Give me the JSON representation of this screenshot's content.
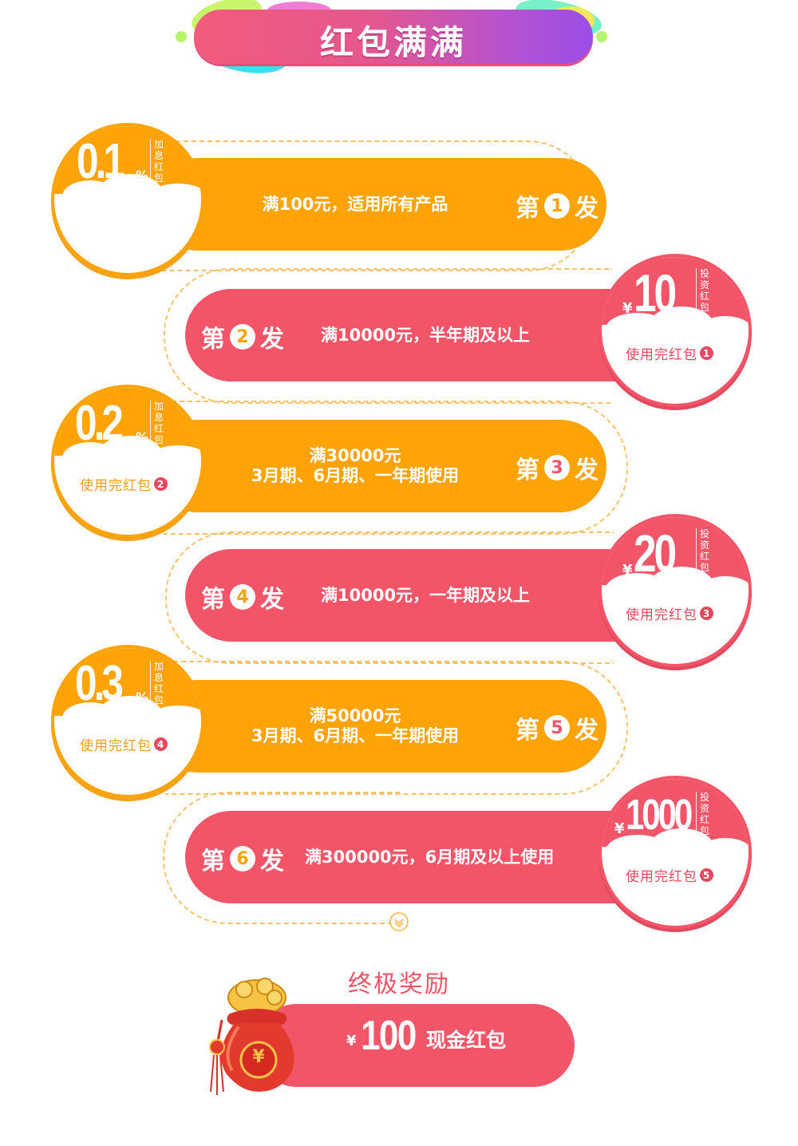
{
  "banner": {
    "title": "红包满满"
  },
  "rows": [
    {
      "ordinal_prefix": "第",
      "number": "1",
      "ordinal_suffix": "发",
      "condition_line1": "满100元，适用所有产品",
      "condition_line2": ""
    },
    {
      "ordinal_prefix": "第",
      "number": "2",
      "ordinal_suffix": "发",
      "condition_line1": "满10000元，半年期及以上",
      "condition_line2": ""
    },
    {
      "ordinal_prefix": "第",
      "number": "3",
      "ordinal_suffix": "发",
      "condition_line1": "满30000元",
      "condition_line2": "3月期、6月期、一年期使用"
    },
    {
      "ordinal_prefix": "第",
      "number": "4",
      "ordinal_suffix": "发",
      "condition_line1": "满10000元，一年期及以上",
      "condition_line2": ""
    },
    {
      "ordinal_prefix": "第",
      "number": "5",
      "ordinal_suffix": "发",
      "condition_line1": "满50000元",
      "condition_line2": "3月期、6月期、一年期使用"
    },
    {
      "ordinal_prefix": "第",
      "number": "6",
      "ordinal_suffix": "发",
      "condition_line1": "满300000元，6月期及以上使用",
      "condition_line2": ""
    }
  ],
  "badges": [
    {
      "value": "0.1",
      "unit": "%",
      "type_label": "加息红包",
      "use_text": "",
      "use_num": ""
    },
    {
      "currency": "¥",
      "value": "10",
      "type_label": "投资红包",
      "use_text": "使用完红包",
      "use_num": "1"
    },
    {
      "value": "0.2",
      "unit": "%",
      "type_label": "加息红包",
      "use_text": "使用完红包",
      "use_num": "2"
    },
    {
      "currency": "¥",
      "value": "20",
      "type_label": "投资红包",
      "use_text": "使用完红包",
      "use_num": "3"
    },
    {
      "value": "0.3",
      "unit": "%",
      "type_label": "加息红包",
      "use_text": "使用完红包",
      "use_num": "4"
    },
    {
      "currency": "¥",
      "value": "1000",
      "type_label": "投资红包",
      "use_text": "使用完红包",
      "use_num": "5"
    }
  ],
  "final": {
    "title": "终极奖励",
    "currency": "¥",
    "amount": "100",
    "label": "现金红包",
    "bag_symbol": "¥"
  },
  "colors": {
    "orange": "#ffa306",
    "pink": "#f25468",
    "path": "#f8c368"
  }
}
